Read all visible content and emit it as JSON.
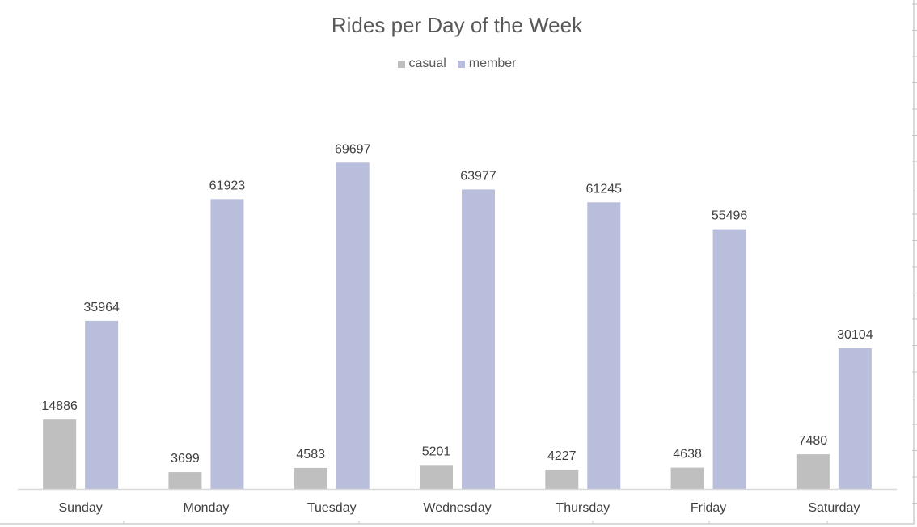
{
  "chart_data": {
    "type": "bar",
    "title": "Rides per Day of the Week",
    "categories": [
      "Sunday",
      "Monday",
      "Tuesday",
      "Wednesday",
      "Thursday",
      "Friday",
      "Saturday"
    ],
    "series": [
      {
        "name": "casual",
        "values": [
          14886,
          3699,
          4583,
          5201,
          4227,
          4638,
          7480
        ],
        "color": "#bfbfbf"
      },
      {
        "name": "member",
        "values": [
          35964,
          61923,
          69697,
          63977,
          61245,
          55496,
          30104
        ],
        "color": "#b9bedc"
      }
    ],
    "ylim": [
      0,
      75000
    ],
    "grid": false,
    "legend_position": "top",
    "data_labels": true
  }
}
